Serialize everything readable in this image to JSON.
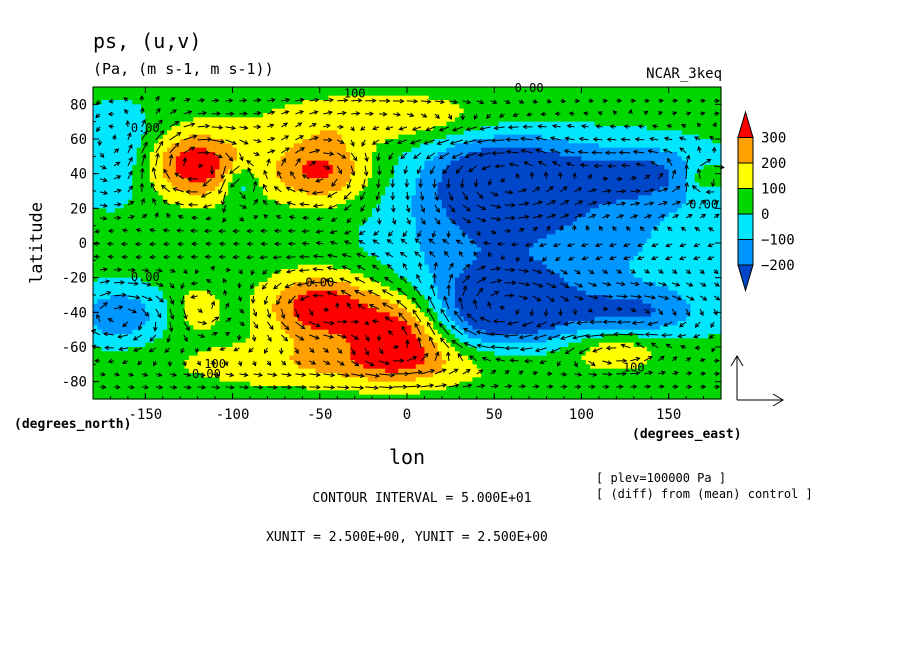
{
  "chart_data": {
    "type": "heatmap",
    "title": "ps, (u,v)",
    "subtitle": "(Pa, (m s-1, m s-1))",
    "dataset": "NCAR_3keq",
    "xlabel": "lon",
    "ylabel": "latitude",
    "x_unit_label": "(degrees_east)",
    "y_unit_label": "(degrees_north)",
    "xlim": [
      -180,
      180
    ],
    "ylim": [
      -90,
      90
    ],
    "x_ticks": [
      -150,
      -100,
      -50,
      0,
      50,
      100,
      150
    ],
    "x_tick_labels": [
      "-150",
      "-100",
      "-50",
      "0",
      "50",
      "100",
      "150"
    ],
    "y_ticks": [
      80,
      60,
      40,
      20,
      0,
      -20,
      -40,
      -60,
      -80
    ],
    "y_tick_labels": [
      "80",
      "60",
      "40",
      "20",
      "0",
      "-20",
      "-40",
      "-60",
      "-80"
    ],
    "colorbar": {
      "levels": [
        300,
        200,
        100,
        0,
        -100,
        -200
      ],
      "labels": [
        "300",
        "200",
        "100",
        "0",
        "−100",
        "−200"
      ],
      "colors": [
        "#ff0000",
        "#ff9f00",
        "#ffff00",
        "#00d700",
        "#00e6ff",
        "#0096ff",
        "#0046c8"
      ]
    },
    "contour_labels": [
      {
        "text": "100",
        "lon": -30,
        "lat": 84
      },
      {
        "text": "0.00",
        "lon": 70,
        "lat": 87
      },
      {
        "text": "0.00",
        "lon": -150,
        "lat": 64
      },
      {
        "text": "0.00",
        "lon": 170,
        "lat": 20
      },
      {
        "text": "0.00",
        "lon": -150,
        "lat": -22
      },
      {
        "text": "0.00",
        "lon": -50,
        "lat": -25
      },
      {
        "text": "100",
        "lon": -110,
        "lat": -72
      },
      {
        "text": "0.00",
        "lon": -115,
        "lat": -78
      },
      {
        "text": "100",
        "lon": 130,
        "lat": -74
      }
    ],
    "anomalies": [
      {
        "lon": -122,
        "lat": 45,
        "amp": 340,
        "sx": 22,
        "sy": 14
      },
      {
        "lon": -50,
        "lat": 42,
        "amp": 290,
        "sx": 20,
        "sy": 14
      },
      {
        "lon": -10,
        "lat": 72,
        "amp": 150,
        "sx": 48,
        "sy": 10
      },
      {
        "lon": 55,
        "lat": 38,
        "amp": -340,
        "sx": 30,
        "sy": 18
      },
      {
        "lon": 135,
        "lat": 40,
        "amp": -200,
        "sx": 28,
        "sy": 12
      },
      {
        "lon": 90,
        "lat": 25,
        "amp": -80,
        "sx": 60,
        "sy": 25
      },
      {
        "lon": 170,
        "lat": 38,
        "amp": 150,
        "sx": 8,
        "sy": 6
      },
      {
        "lon": -95,
        "lat": 35,
        "amp": -170,
        "sx": 7,
        "sy": 8
      },
      {
        "lon": -165,
        "lat": 50,
        "amp": -160,
        "sx": 20,
        "sy": 20
      },
      {
        "lon": -50,
        "lat": -37,
        "amp": 340,
        "sx": 22,
        "sy": 14
      },
      {
        "lon": -5,
        "lat": -52,
        "amp": 320,
        "sx": 20,
        "sy": 16
      },
      {
        "lon": -30,
        "lat": -70,
        "amp": 160,
        "sx": 70,
        "sy": 10
      },
      {
        "lon": -120,
        "lat": -38,
        "amp": 120,
        "sx": 10,
        "sy": 10
      },
      {
        "lon": 55,
        "lat": -38,
        "amp": -360,
        "sx": 28,
        "sy": 16
      },
      {
        "lon": -165,
        "lat": -42,
        "amp": -220,
        "sx": 18,
        "sy": 12
      },
      {
        "lon": 130,
        "lat": -40,
        "amp": -200,
        "sx": 28,
        "sy": 10
      },
      {
        "lon": 120,
        "lat": -62,
        "amp": 150,
        "sx": 18,
        "sy": 8
      },
      {
        "lon": 90,
        "lat": -5,
        "amp": -130,
        "sx": 70,
        "sy": 30
      },
      {
        "lon": 30,
        "lat": 0,
        "amp": -60,
        "sx": 30,
        "sy": 20
      }
    ],
    "background_value": 40
  },
  "footer": {
    "contour_interval": "CONTOUR INTERVAL = 5.000E+01",
    "units": "XUNIT = 2.500E+00, YUNIT = 2.500E+00",
    "plev": "[ plev=100000 Pa ]",
    "diff_note": "[ (diff) from (mean) control ]"
  }
}
